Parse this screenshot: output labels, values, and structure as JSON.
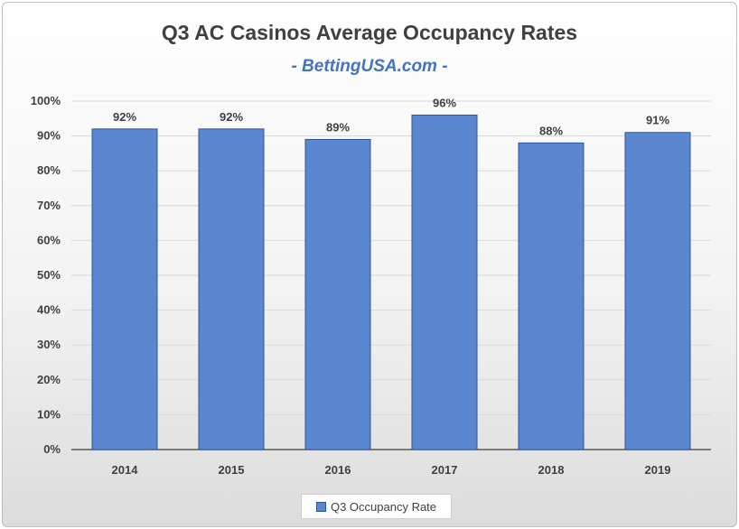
{
  "chart_data": {
    "type": "bar",
    "title": "Q3 AC Casinos Average Occupancy Rates",
    "subtitle": "- BettingUSA.com -",
    "categories": [
      "2014",
      "2015",
      "2016",
      "2017",
      "2018",
      "2019"
    ],
    "series": [
      {
        "name": "Q3 Occupancy Rate",
        "values": [
          92,
          92,
          89,
          96,
          88,
          91
        ]
      }
    ],
    "data_labels": [
      "92%",
      "92%",
      "89%",
      "96%",
      "88%",
      "91%"
    ],
    "ylim": [
      0,
      100
    ],
    "yticks": [
      0,
      10,
      20,
      30,
      40,
      50,
      60,
      70,
      80,
      90,
      100
    ],
    "ytick_labels": [
      "0%",
      "10%",
      "20%",
      "30%",
      "40%",
      "50%",
      "60%",
      "70%",
      "80%",
      "90%",
      "100%"
    ],
    "grid": true,
    "legend_position": "bottom",
    "colors": {
      "bar": "#5b86d0",
      "bar_border": "#2f5597",
      "grid": "#d9d9d9",
      "text": "#404040"
    }
  }
}
